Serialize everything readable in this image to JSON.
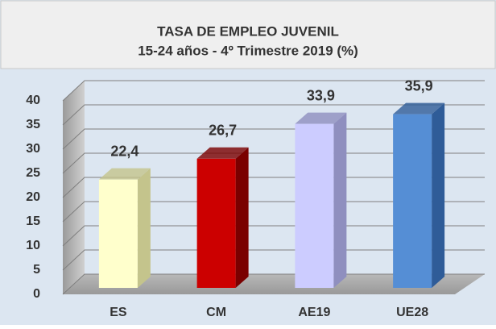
{
  "chart_data": {
    "type": "bar3d",
    "title": "TASA DE EMPLEO JUVENIL",
    "subtitle": "15-24 años - 4º Trimestre 2019 (%)",
    "categories": [
      "ES",
      "CM",
      "AE19",
      "UE28"
    ],
    "values": [
      22.4,
      26.7,
      33.9,
      35.9
    ],
    "value_labels": [
      "22,4",
      "26,7",
      "33,9",
      "35,9"
    ],
    "colors": [
      "#ffffcc",
      "#cc0000",
      "#ccccff",
      "#558ed5"
    ],
    "side_colors": [
      "#c4c48c",
      "#7a0000",
      "#8f8fbf",
      "#2f5c98"
    ],
    "ylim": [
      0,
      40
    ],
    "yticks": [
      0,
      5,
      10,
      15,
      20,
      25,
      30,
      35,
      40
    ],
    "grid": true
  }
}
